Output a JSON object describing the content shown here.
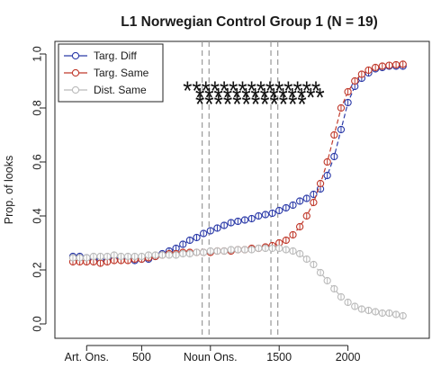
{
  "chart_data": {
    "type": "line",
    "title": "L1 Norwegian Control Group 1 (N = 19)",
    "xlabel": "",
    "ylabel": "Prop. of looks",
    "xlim": [
      0,
      2500
    ],
    "ylim": [
      0.0,
      1.0
    ],
    "yticks": [
      0.0,
      0.2,
      0.4,
      0.6,
      0.8,
      1.0
    ],
    "ytick_labels": [
      "0.0",
      "0.2",
      "0.4",
      "0.6",
      "0.8",
      "1.0"
    ],
    "xticks": [
      {
        "value": 100,
        "label": "Art. Ons."
      },
      {
        "value": 500,
        "label": "500"
      },
      {
        "value": 1000,
        "label": "Noun Ons."
      },
      {
        "value": 1500,
        "label": "1500"
      },
      {
        "value": 2000,
        "label": "2000"
      }
    ],
    "vlines": [
      940,
      990,
      1440,
      1490
    ],
    "significance": {
      "marker": "*",
      "rows": [
        {
          "x_start": 800,
          "x_end": 1800,
          "y": 0.87
        },
        {
          "x_start": 890,
          "x_end": 1830,
          "y": 0.845
        },
        {
          "x_start": 890,
          "x_end": 1700,
          "y": 0.82
        }
      ]
    },
    "legend_position": "top-left",
    "grid": false,
    "series": [
      {
        "name": "Targ. Diff",
        "color": "#2b3aa8",
        "x": [
          0,
          50,
          100,
          150,
          200,
          250,
          300,
          350,
          400,
          450,
          500,
          550,
          600,
          650,
          700,
          750,
          800,
          850,
          900,
          950,
          1000,
          1050,
          1100,
          1150,
          1200,
          1250,
          1300,
          1350,
          1400,
          1450,
          1500,
          1550,
          1600,
          1650,
          1700,
          1750,
          1800,
          1850,
          1900,
          1950,
          2000,
          2050,
          2100,
          2150,
          2200,
          2250,
          2300,
          2350,
          2400
        ],
        "values": [
          0.25,
          0.25,
          0.245,
          0.24,
          0.235,
          0.235,
          0.24,
          0.24,
          0.24,
          0.235,
          0.24,
          0.24,
          0.25,
          0.26,
          0.27,
          0.28,
          0.295,
          0.31,
          0.32,
          0.335,
          0.345,
          0.355,
          0.365,
          0.375,
          0.38,
          0.385,
          0.39,
          0.4,
          0.405,
          0.41,
          0.42,
          0.43,
          0.44,
          0.455,
          0.465,
          0.48,
          0.5,
          0.55,
          0.62,
          0.72,
          0.82,
          0.88,
          0.91,
          0.93,
          0.945,
          0.95,
          0.955,
          0.955,
          0.955
        ]
      },
      {
        "name": "Targ. Same",
        "color": "#c0392b",
        "x": [
          0,
          50,
          100,
          150,
          200,
          250,
          300,
          350,
          400,
          450,
          500,
          550,
          600,
          650,
          700,
          750,
          800,
          850,
          900,
          950,
          1000,
          1050,
          1100,
          1150,
          1200,
          1250,
          1300,
          1350,
          1400,
          1450,
          1500,
          1550,
          1600,
          1650,
          1700,
          1750,
          1800,
          1850,
          1900,
          1950,
          2000,
          2050,
          2100,
          2150,
          2200,
          2250,
          2300,
          2350,
          2400
        ],
        "values": [
          0.23,
          0.23,
          0.23,
          0.23,
          0.225,
          0.23,
          0.235,
          0.235,
          0.235,
          0.24,
          0.24,
          0.245,
          0.25,
          0.255,
          0.26,
          0.26,
          0.265,
          0.265,
          0.265,
          0.265,
          0.265,
          0.27,
          0.27,
          0.27,
          0.275,
          0.275,
          0.28,
          0.28,
          0.285,
          0.29,
          0.3,
          0.31,
          0.33,
          0.36,
          0.4,
          0.45,
          0.52,
          0.6,
          0.7,
          0.8,
          0.86,
          0.9,
          0.925,
          0.94,
          0.95,
          0.955,
          0.958,
          0.96,
          0.962
        ]
      },
      {
        "name": "Dist. Same",
        "color": "#bbbbbb",
        "x": [
          0,
          50,
          100,
          150,
          200,
          250,
          300,
          350,
          400,
          450,
          500,
          550,
          600,
          650,
          700,
          750,
          800,
          850,
          900,
          950,
          1000,
          1050,
          1100,
          1150,
          1200,
          1250,
          1300,
          1350,
          1400,
          1450,
          1500,
          1550,
          1600,
          1650,
          1700,
          1750,
          1800,
          1850,
          1900,
          1950,
          2000,
          2050,
          2100,
          2150,
          2200,
          2250,
          2300,
          2350,
          2400
        ],
        "values": [
          0.245,
          0.245,
          0.245,
          0.25,
          0.25,
          0.25,
          0.255,
          0.25,
          0.25,
          0.25,
          0.25,
          0.255,
          0.255,
          0.255,
          0.255,
          0.255,
          0.26,
          0.26,
          0.265,
          0.265,
          0.27,
          0.27,
          0.27,
          0.275,
          0.275,
          0.275,
          0.275,
          0.28,
          0.28,
          0.28,
          0.28,
          0.275,
          0.27,
          0.26,
          0.24,
          0.22,
          0.19,
          0.16,
          0.13,
          0.1,
          0.08,
          0.065,
          0.055,
          0.05,
          0.045,
          0.04,
          0.04,
          0.035,
          0.03
        ]
      }
    ]
  }
}
